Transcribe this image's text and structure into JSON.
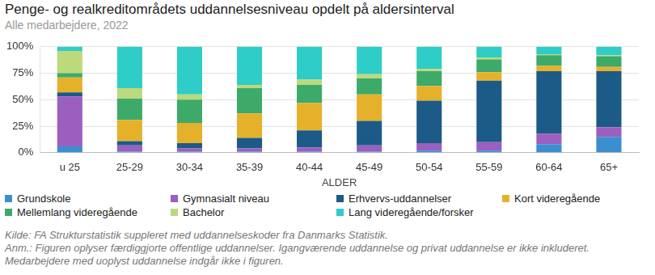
{
  "chart_data": {
    "type": "bar",
    "title": "Penge- og realkreditområdets uddannelsesniveau opdelt på aldersinterval",
    "subtitle": "Alle medarbejdere, 2022",
    "x_label": "ALDER",
    "notes": [
      "Kilde: FA Strukturstatistik suppleret med uddannelseskoder fra Danmarks Statistik.",
      "Anm.: Figuren oplyser færdiggjorte offentlige uddannelser. Igangværende uddannelse og privat uddannelse er ikke inkluderet.",
      "Medarbejdere med uoplyst uddannelse indgår ikke i figuren."
    ],
    "categories": [
      "u 25",
      "25-29",
      "30-34",
      "35-39",
      "40-44",
      "45-49",
      "50-54",
      "55-59",
      "60-64",
      "65+"
    ],
    "stacked": true,
    "grid": true,
    "legend": "bottom",
    "ylim": [
      0,
      100
    ],
    "yticks": [
      {
        "value": 0,
        "label": "0%"
      },
      {
        "value": 25,
        "label": "25%"
      },
      {
        "value": 50,
        "label": "50%"
      },
      {
        "value": 75,
        "label": "75%"
      },
      {
        "value": 100,
        "label": "100%"
      }
    ],
    "series": [
      {
        "name": "Grundskole",
        "color": "#3b8fd0",
        "values": [
          6,
          1,
          1,
          1,
          1,
          1,
          2,
          2,
          8,
          15
        ]
      },
      {
        "name": "Gymnasialt niveau",
        "color": "#9b5fc0",
        "values": [
          47,
          6,
          3,
          3,
          4,
          6,
          7,
          8,
          10,
          9
        ]
      },
      {
        "name": "Erhvervs-uddannelser",
        "color": "#1c5a87",
        "values": [
          4,
          4,
          5,
          10,
          16,
          23,
          40,
          58,
          59,
          53
        ]
      },
      {
        "name": "Kort videregående",
        "color": "#e6b12a",
        "values": [
          14,
          20,
          19,
          23,
          26,
          25,
          14,
          8,
          5,
          4
        ]
      },
      {
        "name": "Mellemlang videregående",
        "color": "#3daa6a",
        "values": [
          4,
          20,
          22,
          24,
          17,
          15,
          14,
          12,
          10,
          10
        ]
      },
      {
        "name": "Bachelor",
        "color": "#bcd97c",
        "values": [
          21,
          10,
          5,
          3,
          5,
          4,
          2,
          2,
          1,
          1
        ]
      },
      {
        "name": "Lang videregående/forsker",
        "color": "#2fcdc8",
        "values": [
          4,
          39,
          45,
          36,
          31,
          26,
          21,
          10,
          7,
          8
        ]
      }
    ]
  }
}
